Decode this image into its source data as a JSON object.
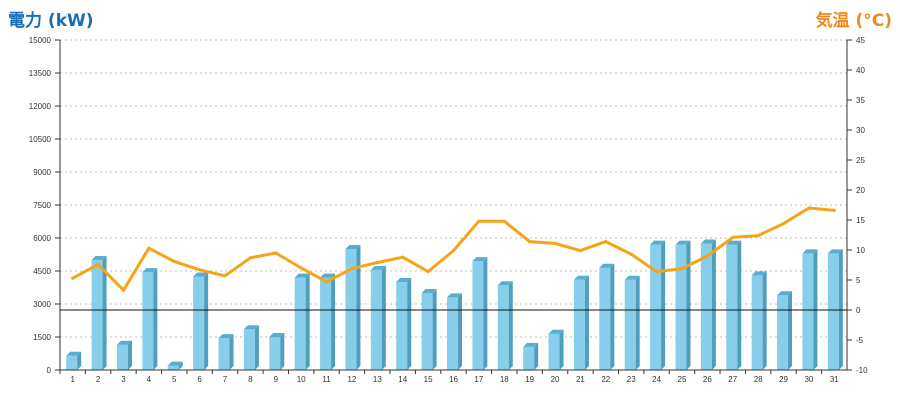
{
  "chart_data": {
    "type": "bar",
    "left_axis_title": "電力 (kW)",
    "right_axis_title": "気温 (°C)",
    "categories": [
      "1",
      "2",
      "3",
      "4",
      "5",
      "6",
      "7",
      "8",
      "9",
      "10",
      "11",
      "12",
      "13",
      "14",
      "15",
      "16",
      "17",
      "18",
      "19",
      "20",
      "21",
      "22",
      "23",
      "24",
      "25",
      "26",
      "27",
      "28",
      "29",
      "30",
      "31"
    ],
    "series": [
      {
        "type": "bar",
        "axis": "left",
        "color": "#87ceeb",
        "values": [
          650,
          5000,
          1150,
          4450,
          200,
          4250,
          1450,
          1850,
          1500,
          4200,
          4200,
          5500,
          4550,
          4000,
          3500,
          3300,
          4950,
          3850,
          1050,
          1650,
          4100,
          4650,
          4100,
          5700,
          5700,
          5750,
          5700,
          4300,
          3400,
          5300,
          5300
        ]
      },
      {
        "type": "line",
        "axis": "right",
        "color": "#f5a417",
        "values": [
          5.3,
          7.6,
          3.3,
          10.3,
          8.1,
          6.7,
          5.7,
          8.7,
          9.5,
          7.0,
          4.7,
          6.9,
          7.9,
          8.8,
          6.4,
          9.9,
          14.8,
          14.8,
          11.4,
          11.1,
          9.9,
          11.4,
          9.3,
          6.4,
          6.9,
          9.0,
          12.1,
          12.4,
          14.4,
          17.0,
          16.6
        ]
      }
    ],
    "left_axis": {
      "min": 0,
      "max": 15000,
      "ticks": [
        0,
        1500,
        3000,
        4500,
        6000,
        7500,
        9000,
        10500,
        12000,
        13500,
        15000
      ]
    },
    "right_axis": {
      "min": -10,
      "max": 45,
      "ticks": [
        -10,
        -5,
        0,
        5,
        10,
        15,
        20,
        25,
        30,
        35,
        40,
        45
      ]
    },
    "zero_line_right": 0,
    "grid": "horizontal-dashed"
  }
}
